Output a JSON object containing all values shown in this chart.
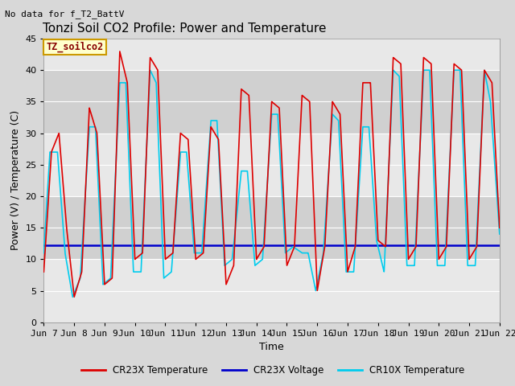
{
  "title": "Tonzi Soil CO2 Profile: Power and Temperature",
  "no_data_label": "No data for f_T2_BattV",
  "ylabel": "Power (V) / Temperature (C)",
  "xlabel": "Time",
  "ylim": [
    0,
    45
  ],
  "xlim": [
    0,
    15
  ],
  "tick_labels": [
    "Jun 7",
    "Jun 8",
    "Jun 9",
    "Jun 10",
    "Jun 11",
    "Jun 12",
    "Jun 13",
    "Jun 14",
    "Jun 15",
    "Jun 16",
    "Jun 17",
    "Jun 18",
    "Jun 19",
    "Jun 20",
    "Jun 21",
    "Jun 22"
  ],
  "voltage_value": 12.2,
  "box_label": "TZ_soilco2",
  "box_facecolor": "#ffffcc",
  "box_edgecolor": "#cc9900",
  "cr23x_color": "#dd0000",
  "cr10x_color": "#00ccee",
  "voltage_color": "#0000cc",
  "bg_color": "#d8d8d8",
  "plot_bg_color": "#e8e8e8",
  "legend_items": [
    "CR23X Temperature",
    "CR23X Voltage",
    "CR10X Temperature"
  ],
  "legend_colors": [
    "#dd0000",
    "#0000cc",
    "#00ccee"
  ],
  "title_fontsize": 11,
  "label_fontsize": 9,
  "tick_fontsize": 8,
  "cr23x_pts_x": [
    0,
    0.25,
    0.5,
    0.75,
    1.0,
    1.25,
    1.5,
    1.75,
    2.0,
    2.25,
    2.5,
    2.75,
    3.0,
    3.25,
    3.5,
    3.75,
    4.0,
    4.25,
    4.5,
    4.75,
    5.0,
    5.25,
    5.5,
    5.75,
    6.0,
    6.25,
    6.5,
    6.75,
    7.0,
    7.25,
    7.5,
    7.75,
    8.0,
    8.25,
    8.5,
    8.75,
    9.0,
    9.25,
    9.5,
    9.75,
    10.0,
    10.25,
    10.5,
    10.75,
    11.0,
    11.25,
    11.5,
    11.75,
    12.0,
    12.25,
    12.5,
    12.75,
    13.0,
    13.25,
    13.5,
    13.75,
    14.0,
    14.25,
    14.5,
    14.75,
    15.0
  ],
  "cr23x_pts_y": [
    8,
    27,
    30,
    15,
    4,
    8,
    34,
    30,
    6,
    7,
    43,
    38,
    10,
    11,
    42,
    40,
    10,
    11,
    30,
    29,
    10,
    11,
    31,
    29,
    6,
    9,
    37,
    36,
    10,
    12,
    35,
    34,
    9,
    12,
    36,
    35,
    5,
    12,
    35,
    33,
    8,
    12,
    38,
    38,
    13,
    12,
    42,
    41,
    10,
    12,
    42,
    41,
    10,
    12,
    41,
    40,
    10,
    12,
    40,
    38,
    15
  ],
  "cr10x_pts_x": [
    0,
    0.2,
    0.45,
    0.7,
    0.95,
    1.2,
    1.5,
    1.7,
    1.95,
    2.2,
    2.5,
    2.7,
    2.95,
    3.2,
    3.5,
    3.7,
    3.95,
    4.2,
    4.5,
    4.7,
    4.95,
    5.2,
    5.5,
    5.7,
    5.95,
    6.2,
    6.5,
    6.7,
    6.95,
    7.2,
    7.5,
    7.7,
    7.95,
    8.2,
    8.5,
    8.7,
    8.95,
    9.2,
    9.5,
    9.7,
    9.95,
    10.2,
    10.5,
    10.7,
    10.95,
    11.2,
    11.5,
    11.7,
    11.95,
    12.2,
    12.5,
    12.7,
    12.95,
    13.2,
    13.5,
    13.7,
    13.95,
    14.2,
    14.5,
    14.7,
    15.0
  ],
  "cr10x_pts_y": [
    11,
    27,
    27,
    11,
    4,
    7,
    31,
    31,
    6,
    7,
    38,
    38,
    8,
    8,
    40,
    38,
    7,
    8,
    27,
    27,
    11,
    11,
    32,
    32,
    9,
    10,
    24,
    24,
    9,
    10,
    33,
    33,
    11,
    12,
    11,
    11,
    5,
    11,
    33,
    32,
    8,
    8,
    31,
    31,
    13,
    8,
    40,
    39,
    9,
    9,
    40,
    40,
    9,
    9,
    40,
    40,
    9,
    9,
    40,
    35,
    14
  ]
}
